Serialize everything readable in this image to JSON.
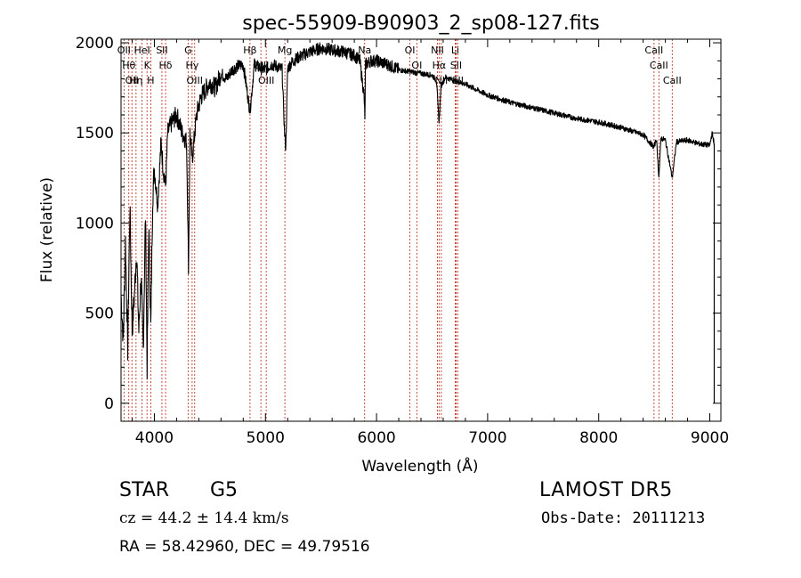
{
  "chart_data": {
    "type": "line",
    "title": "spec-55909-B90903_2_sp08-127.fits",
    "xlabel": "Wavelength (Å)",
    "ylabel": "Flux (relative)",
    "xlim": [
      3700,
      9100
    ],
    "ylim": [
      -100,
      2020
    ],
    "xticks": [
      4000,
      5000,
      6000,
      7000,
      8000,
      9000
    ],
    "yticks": [
      0,
      500,
      1000,
      1500,
      2000
    ],
    "grid": false,
    "series": [
      {
        "x": [
          3700,
          3720,
          3740,
          3760,
          3780,
          3800,
          3820,
          3840,
          3860,
          3880,
          3900,
          3920,
          3935,
          3950,
          3968,
          3985,
          4000,
          4030,
          4060,
          4080,
          4101,
          4120,
          4150,
          4200,
          4250,
          4290,
          4308,
          4320,
          4340,
          4380,
          4420,
          4500,
          4550,
          4600,
          4650,
          4700,
          4750,
          4800,
          4861,
          4900,
          4950,
          5000,
          5050,
          5100,
          5150,
          5172,
          5183,
          5200,
          5250,
          5300,
          5400,
          5500,
          5600,
          5700,
          5800,
          5850,
          5889,
          5895,
          5900,
          5950,
          6000,
          6100,
          6200,
          6300,
          6400,
          6500,
          6540,
          6563,
          6580,
          6620,
          6700,
          6800,
          6900,
          7000,
          7200,
          7400,
          7600,
          7800,
          8000,
          8200,
          8400,
          8498,
          8520,
          8542,
          8560,
          8600,
          8662,
          8700,
          8800,
          8900,
          9000,
          9020,
          9040
        ],
        "y": [
          600,
          350,
          900,
          300,
          1100,
          400,
          600,
          850,
          400,
          700,
          300,
          1050,
          200,
          1000,
          400,
          1150,
          1300,
          1100,
          1450,
          1300,
          1200,
          1500,
          1550,
          1600,
          1500,
          1450,
          750,
          1500,
          1350,
          1600,
          1700,
          1780,
          1750,
          1830,
          1800,
          1850,
          1870,
          1880,
          1620,
          1880,
          1860,
          1850,
          1880,
          1870,
          1850,
          1500,
          1420,
          1860,
          1900,
          1920,
          1950,
          1970,
          1960,
          1950,
          1930,
          1900,
          1700,
          1560,
          1880,
          1900,
          1900,
          1880,
          1850,
          1840,
          1830,
          1820,
          1790,
          1550,
          1760,
          1810,
          1790,
          1770,
          1740,
          1710,
          1670,
          1640,
          1610,
          1580,
          1560,
          1530,
          1490,
          1420,
          1470,
          1250,
          1470,
          1460,
          1250,
          1450,
          1460,
          1440,
          1430,
          1500,
          1440
        ]
      }
    ],
    "line_markers": [
      {
        "wl": 3727,
        "label": "OII"
      },
      {
        "wl": 3770,
        "label": "Hθ"
      },
      {
        "wl": 3798,
        "label": "OII"
      },
      {
        "wl": 3835,
        "label": "Hη"
      },
      {
        "wl": 3889,
        "label": "HeI"
      },
      {
        "wl": 3934,
        "label": "K"
      },
      {
        "wl": 3968,
        "label": "H"
      },
      {
        "wl": 4068,
        "label": "SII"
      },
      {
        "wl": 4101,
        "label": "Hδ"
      },
      {
        "wl": 4304,
        "label": "G"
      },
      {
        "wl": 4340,
        "label": "Hγ"
      },
      {
        "wl": 4363,
        "label": "OIII"
      },
      {
        "wl": 4861,
        "label": "Hβ"
      },
      {
        "wl": 4959,
        "label": "OIII"
      },
      {
        "wl": 5007,
        "label": "OIII"
      },
      {
        "wl": 5175,
        "label": "Mg"
      },
      {
        "wl": 5893,
        "label": "Na"
      },
      {
        "wl": 6300,
        "label": "OI"
      },
      {
        "wl": 6363,
        "label": "OI"
      },
      {
        "wl": 6548,
        "label": "NII"
      },
      {
        "wl": 6563,
        "label": "Hα"
      },
      {
        "wl": 6583,
        "label": "NII"
      },
      {
        "wl": 6708,
        "label": "Li"
      },
      {
        "wl": 6716,
        "label": "SII"
      },
      {
        "wl": 6731,
        "label": "SII"
      },
      {
        "wl": 8498,
        "label": "CaII"
      },
      {
        "wl": 8542,
        "label": "CaII"
      },
      {
        "wl": 8662,
        "label": "CaII"
      }
    ],
    "colors": {
      "line": "#000000",
      "axes": "#000000",
      "markers": "#c0392b",
      "background": "#ffffff"
    }
  },
  "info": {
    "class": "STAR",
    "subclass": "G5",
    "survey": "LAMOST DR5",
    "cz": "cz = 44.2 ± 14.4 km/s",
    "obs_date": "Obs-Date: 20111213",
    "radec": "RA =  58.42960, DEC =  49.79516"
  }
}
